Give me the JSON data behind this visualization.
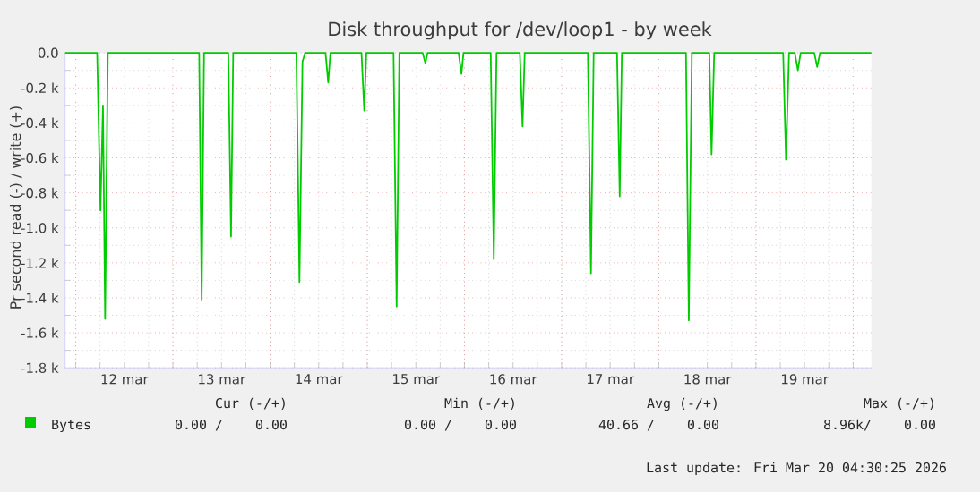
{
  "chart_data": {
    "type": "line",
    "title": "Disk throughput for /dev/loop1 - by week",
    "ylabel": "Pr second read (-) / write (+)",
    "x": [
      "2026-03-11T21:22",
      "2026-03-12T05:17",
      "2026-03-12T06:06",
      "2026-03-12T06:43",
      "2026-03-12T07:15",
      "2026-03-12T07:55",
      "2026-03-13T06:29",
      "2026-03-13T07:06",
      "2026-03-13T07:41",
      "2026-03-13T13:41",
      "2026-03-13T14:21",
      "2026-03-13T14:53",
      "2026-03-14T06:29",
      "2026-03-14T07:15",
      "2026-03-14T08:00",
      "2026-03-14T08:38",
      "2026-03-14T13:41",
      "2026-03-14T14:21",
      "2026-03-14T14:53",
      "2026-03-14T22:34",
      "2026-03-14T23:15",
      "2026-03-14T23:46",
      "2026-03-15T06:29",
      "2026-03-15T07:15",
      "2026-03-15T07:55",
      "2026-03-15T13:41",
      "2026-03-15T14:21",
      "2026-03-15T14:53",
      "2026-03-15T22:34",
      "2026-03-15T23:15",
      "2026-03-15T23:46",
      "2026-03-16T06:29",
      "2026-03-16T07:15",
      "2026-03-16T07:55",
      "2026-03-16T13:41",
      "2026-03-16T14:21",
      "2026-03-16T14:53",
      "2026-03-17T06:29",
      "2026-03-17T07:15",
      "2026-03-17T07:55",
      "2026-03-17T13:41",
      "2026-03-17T14:21",
      "2026-03-17T14:53",
      "2026-03-18T06:43",
      "2026-03-18T07:25",
      "2026-03-18T08:10",
      "2026-03-18T12:29",
      "2026-03-18T13:02",
      "2026-03-18T13:41",
      "2026-03-19T06:43",
      "2026-03-19T07:25",
      "2026-03-19T08:10",
      "2026-03-19T09:36",
      "2026-03-19T10:21",
      "2026-03-19T11:02",
      "2026-03-19T14:24",
      "2026-03-19T15:07",
      "2026-03-19T15:50",
      "2026-03-20T04:30"
    ],
    "series": [
      {
        "name": "Bytes",
        "color": "#00cc00",
        "values": [
          0,
          0,
          -900,
          -300,
          -1520,
          0,
          0,
          -1410,
          0,
          0,
          -1050,
          0,
          0,
          -1310,
          -50,
          0,
          0,
          -170,
          0,
          0,
          -330,
          0,
          0,
          -1450,
          0,
          0,
          -60,
          0,
          0,
          -120,
          0,
          0,
          -1180,
          0,
          0,
          -420,
          0,
          0,
          -1260,
          0,
          0,
          -820,
          0,
          0,
          -1530,
          0,
          0,
          -580,
          0,
          0,
          -610,
          0,
          0,
          -100,
          0,
          0,
          -80,
          0,
          0
        ]
      }
    ],
    "xlim": [
      "2026-03-11T21:22",
      "2026-03-20T04:30"
    ],
    "xticks": [
      {
        "value": "2026-03-12T12:00",
        "label": "12 mar"
      },
      {
        "value": "2026-03-13T12:00",
        "label": "13 mar"
      },
      {
        "value": "2026-03-14T12:00",
        "label": "14 mar"
      },
      {
        "value": "2026-03-15T12:00",
        "label": "15 mar"
      },
      {
        "value": "2026-03-16T12:00",
        "label": "16 mar"
      },
      {
        "value": "2026-03-17T12:00",
        "label": "17 mar"
      },
      {
        "value": "2026-03-18T12:00",
        "label": "18 mar"
      },
      {
        "value": "2026-03-19T12:00",
        "label": "19 mar"
      }
    ],
    "ylim": [
      -1800,
      0
    ],
    "yticks": [
      {
        "value": 0,
        "label": "0.0"
      },
      {
        "value": -200,
        "label": "-0.2 k"
      },
      {
        "value": -400,
        "label": "-0.4 k"
      },
      {
        "value": -600,
        "label": "-0.6 k"
      },
      {
        "value": -800,
        "label": "-0.8 k"
      },
      {
        "value": -1000,
        "label": "-1.0 k"
      },
      {
        "value": -1200,
        "label": "-1.2 k"
      },
      {
        "value": -1400,
        "label": "-1.4 k"
      },
      {
        "value": -1600,
        "label": "-1.6 k"
      },
      {
        "value": -1800,
        "label": "-1.8 k"
      }
    ],
    "grid": true,
    "legend": "bottom",
    "annotations": [
      "Cur (-/+)",
      "Min (-/+)",
      "Avg (-/+)",
      "Max (-/+)",
      "0.00 /    0.00",
      "0.00 /    0.00",
      "40.66 /    0.00",
      "8.96k/    0.00",
      "Last update: Fri Mar 20 04:30:25 2026"
    ]
  }
}
